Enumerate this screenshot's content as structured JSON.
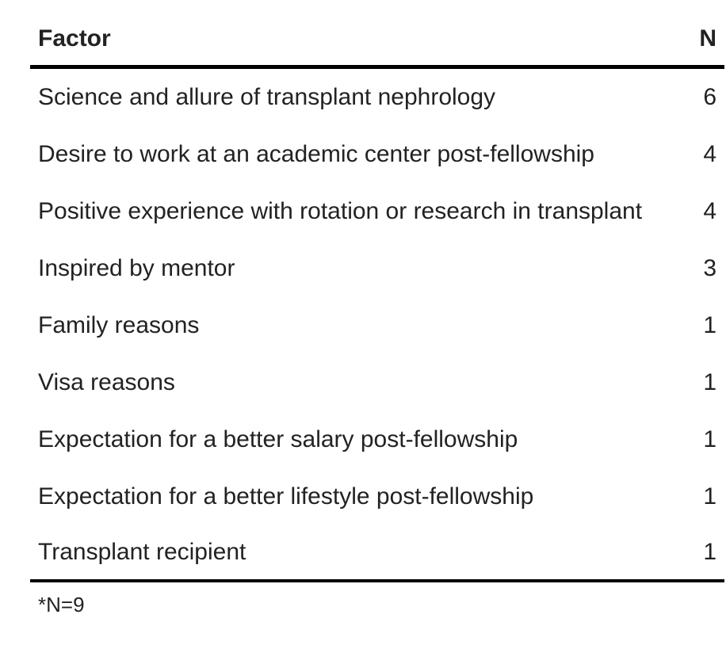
{
  "table": {
    "headers": {
      "factor": "Factor",
      "n": "N"
    },
    "rows": [
      {
        "factor": "Science and allure of transplant nephrology",
        "n": "6"
      },
      {
        "factor": "Desire to work at an academic center post-fellowship",
        "n": "4"
      },
      {
        "factor": "Positive experience with rotation or research in transplant",
        "n": "4"
      },
      {
        "factor": "Inspired by mentor",
        "n": "3"
      },
      {
        "factor": "Family reasons",
        "n": "1"
      },
      {
        "factor": "Visa reasons",
        "n": "1"
      },
      {
        "factor": "Expectation for a better salary post-fellowship",
        "n": "1"
      },
      {
        "factor": "Expectation for a better lifestyle post-fellowship",
        "n": "1"
      },
      {
        "factor": "Transplant recipient",
        "n": "1"
      }
    ]
  },
  "footnote": "*N=9"
}
